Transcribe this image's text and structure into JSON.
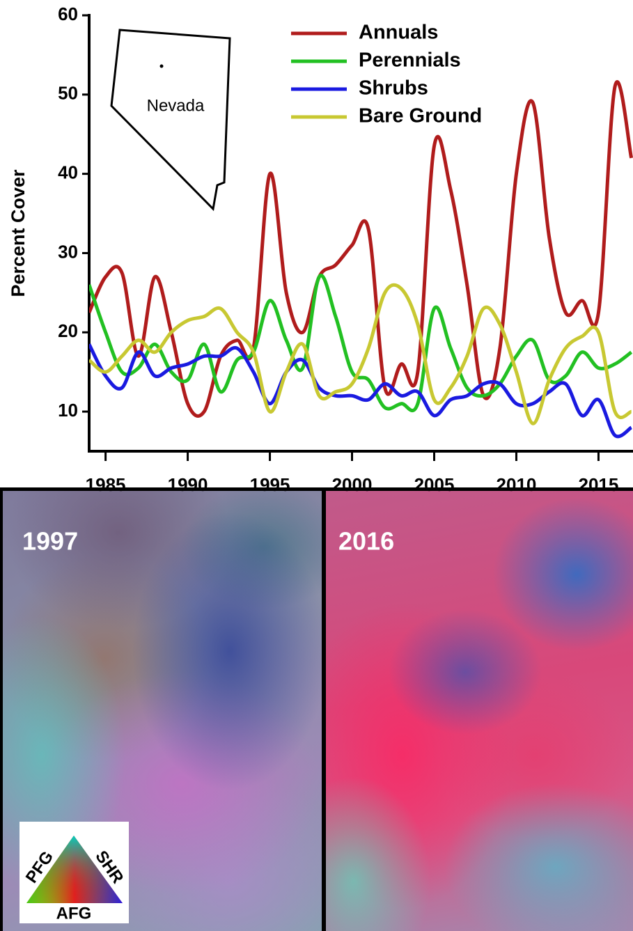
{
  "chart_data": {
    "type": "line",
    "y_label": "Percent Cover",
    "x": [
      1984,
      1985,
      1986,
      1987,
      1988,
      1989,
      1990,
      1991,
      1992,
      1993,
      1994,
      1995,
      1996,
      1997,
      1998,
      1999,
      2000,
      2001,
      2002,
      2003,
      2004,
      2005,
      2006,
      2007,
      2008,
      2009,
      2010,
      2011,
      2012,
      2013,
      2014,
      2015,
      2016,
      2017
    ],
    "series": [
      {
        "name": "Annuals",
        "color": "#b01c1c",
        "values": [
          22.5,
          27,
          27.5,
          17,
          27,
          20,
          11,
          10,
          17,
          19,
          18,
          40,
          25,
          20,
          27,
          28.5,
          31,
          33,
          13,
          16,
          15,
          43.5,
          38,
          26,
          12,
          18,
          40,
          49,
          32,
          22.5,
          24,
          22.5,
          51,
          42
        ]
      },
      {
        "name": "Perennials",
        "color": "#22c022",
        "values": [
          26,
          20,
          15,
          15.5,
          18.5,
          15,
          14,
          18.5,
          12.5,
          16.5,
          17.5,
          24,
          19,
          15.5,
          27,
          22,
          15,
          14,
          10.5,
          11,
          11,
          23,
          18,
          13,
          12,
          13.5,
          17,
          19,
          14,
          14.5,
          17.5,
          15.5,
          16,
          17.5
        ]
      },
      {
        "name": "Shrubs",
        "color": "#1a1ae0",
        "values": [
          18.5,
          14.5,
          13,
          17.5,
          14.5,
          15.5,
          16,
          17,
          17,
          18,
          15,
          11,
          15,
          16.5,
          13,
          12,
          12,
          11.5,
          13.5,
          12,
          12.5,
          9.5,
          11.5,
          12,
          13.5,
          13.5,
          11,
          11,
          12.5,
          13.5,
          9.5,
          11.5,
          7,
          8
        ]
      },
      {
        "name": "Bare Ground",
        "color": "#c8c832",
        "values": [
          16.5,
          15,
          17,
          19,
          17.5,
          20,
          21.5,
          22,
          23,
          20,
          17.5,
          10,
          15,
          18.5,
          12,
          12.5,
          13.5,
          18,
          25,
          25.5,
          21,
          11.5,
          13,
          17,
          23,
          21,
          15,
          8.5,
          14,
          18,
          19.5,
          20,
          10,
          10
        ]
      }
    ],
    "xlim": [
      1984,
      2017.1
    ],
    "xticks": [
      1985,
      1990,
      1995,
      2000,
      2005,
      2010,
      2015
    ],
    "ylim": [
      5,
      60
    ],
    "yticks": [
      10,
      20,
      30,
      40,
      50,
      60
    ],
    "inset_label": "Nevada",
    "image_labels": [
      "1997",
      "2016"
    ],
    "triangle_labels": [
      "PFG",
      "SHR",
      "AFG"
    ]
  }
}
